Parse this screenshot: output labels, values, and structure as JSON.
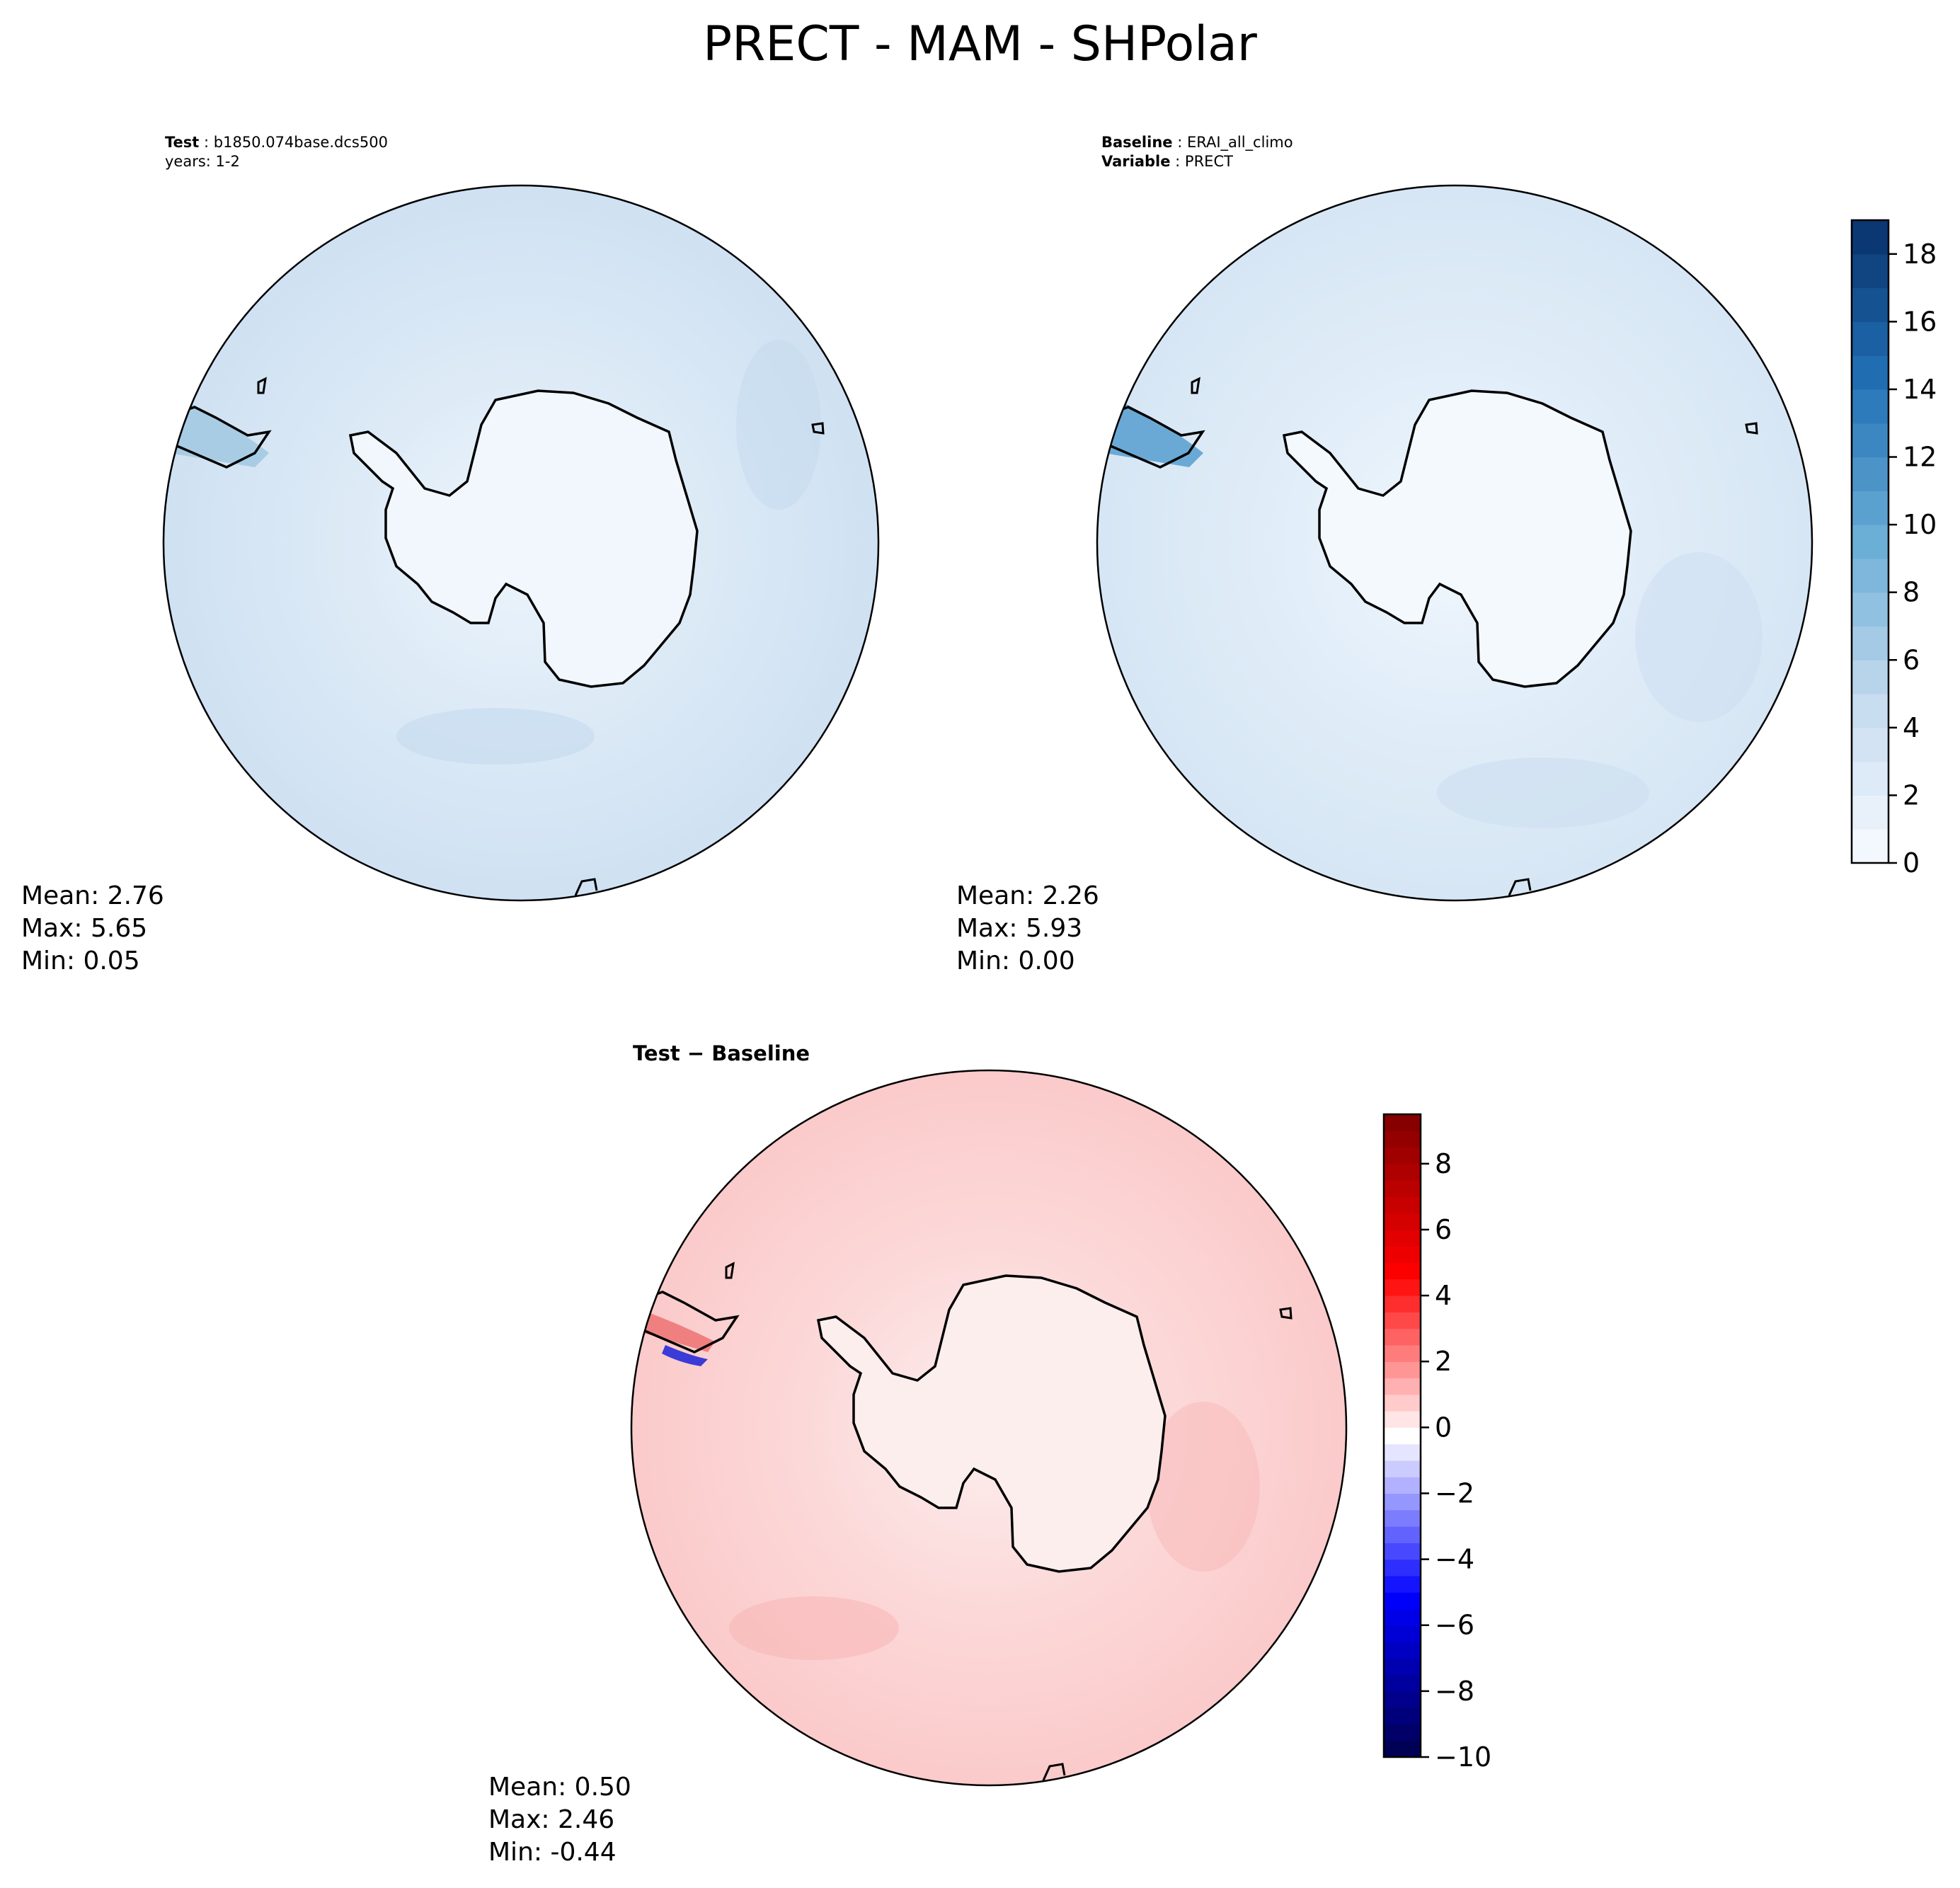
{
  "title": "PRECT - MAM - SHPolar",
  "colors": {
    "test_fill": "#d2e3f3",
    "baseline_fill": "#dcebf7",
    "antarctica_fill": "#f1f7fd",
    "diff_fill": "#fcd6d6",
    "diff_inner": "#fde9e9",
    "outline": "#000000"
  },
  "panels": {
    "test": {
      "label": "Test",
      "name": "b1850.074base.dcs500",
      "years": "years: 1-2",
      "mean": "Mean:  2.76",
      "max": "Max:  5.65",
      "min": "Min:  0.05"
    },
    "baseline": {
      "label": "Baseline",
      "name": "ERAI_all_climo",
      "variable_label": "Variable",
      "variable": "PRECT",
      "mean": "Mean:  2.26",
      "max": "Max:  5.93",
      "min": "Min:  0.00"
    },
    "diff": {
      "title_a": "Test",
      "title_sep": " − ",
      "title_b": "Baseline",
      "mean": "Mean:  0.50",
      "max": "Max:  2.46",
      "min": "Min: -0.44"
    }
  },
  "chart_data": [
    {
      "type": "heatmap",
      "panel": "test",
      "projection": "south-polar-stereographic",
      "colormap": "Blues",
      "clim": [
        0,
        19
      ],
      "mean": 2.76,
      "max": 5.65,
      "min": 0.05
    },
    {
      "type": "heatmap",
      "panel": "baseline",
      "projection": "south-polar-stereographic",
      "colormap": "Blues",
      "clim": [
        0,
        19
      ],
      "mean": 2.26,
      "max": 5.93,
      "min": 0.0
    },
    {
      "type": "heatmap",
      "panel": "diff",
      "projection": "south-polar-stereographic",
      "colormap": "seismic",
      "clim": [
        -10,
        9.5
      ],
      "mean": 0.5,
      "max": 2.46,
      "min": -0.44
    }
  ],
  "colorbars": {
    "precip": {
      "vmin": 0,
      "vmax": 19,
      "levels": 19,
      "ticks": [
        0,
        2,
        4,
        6,
        8,
        10,
        12,
        14,
        16,
        18
      ],
      "tick_labels": [
        "0",
        "2",
        "4",
        "6",
        "8",
        "10",
        "12",
        "14",
        "16",
        "18"
      ]
    },
    "diff": {
      "vmin": -10,
      "vmax": 9.5,
      "levels": 39,
      "ticks": [
        -10,
        -8,
        -6,
        -4,
        -2,
        0,
        2,
        4,
        6,
        8
      ],
      "tick_labels": [
        "−10",
        "−8",
        "−6",
        "−4",
        "−2",
        "0",
        "2",
        "4",
        "6",
        "8"
      ]
    }
  }
}
